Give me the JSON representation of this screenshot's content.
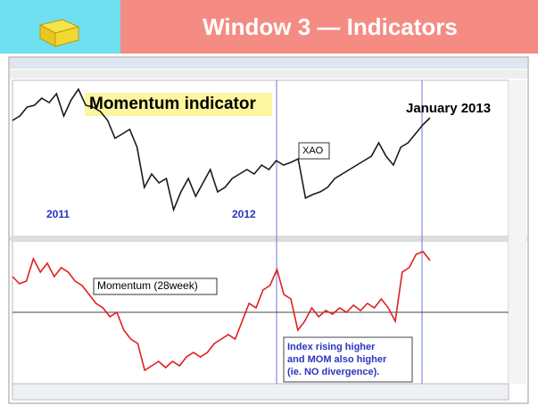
{
  "header": {
    "title": "Window 3 — Indicators"
  },
  "chart_data": [
    {
      "type": "line",
      "color": "#1a1a1a",
      "ylim": [
        0,
        170
      ],
      "values": [
        130,
        135,
        145,
        147,
        155,
        150,
        160,
        135,
        153,
        165,
        147,
        145,
        140,
        130,
        110,
        115,
        120,
        100,
        55,
        70,
        60,
        65,
        30,
        50,
        65,
        45,
        60,
        75,
        50,
        55,
        65,
        70,
        75,
        70,
        80,
        75,
        85,
        80,
        83,
        87,
        43,
        47,
        50,
        55,
        65,
        70,
        75,
        80,
        85,
        90,
        105,
        90,
        80,
        100,
        105,
        115,
        125,
        133
      ],
      "annotations": [
        "Momentum indicator",
        "January 2013",
        "XAO",
        "2011",
        "2012"
      ]
    },
    {
      "type": "line",
      "color": "#e02020",
      "ylim": [
        0,
        155
      ],
      "values": [
        120,
        112,
        115,
        140,
        125,
        135,
        120,
        130,
        125,
        115,
        110,
        100,
        90,
        85,
        75,
        80,
        60,
        50,
        45,
        15,
        20,
        25,
        18,
        25,
        20,
        30,
        35,
        30,
        35,
        45,
        50,
        55,
        50,
        70,
        90,
        85,
        105,
        110,
        128,
        100,
        95,
        60,
        70,
        85,
        75,
        82,
        78,
        85,
        80,
        88,
        82,
        90,
        85,
        95,
        85,
        70,
        125,
        130,
        145,
        148,
        138
      ],
      "annotations": [
        "Momentum (28week)",
        [
          "Index rising higher",
          "and MOM also higher",
          "(ie. NO divergence)."
        ]
      ]
    }
  ]
}
